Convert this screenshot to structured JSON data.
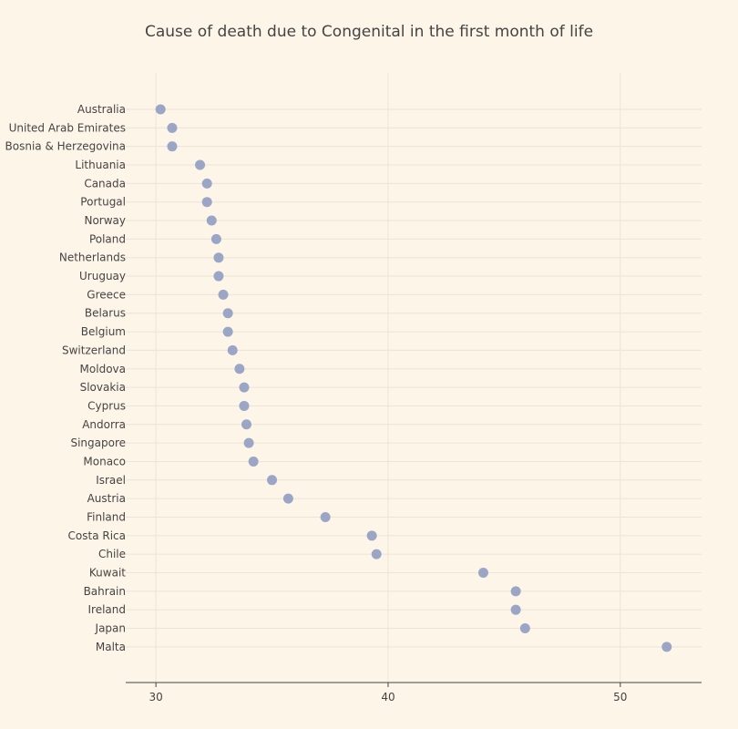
{
  "chart_data": {
    "type": "scatter",
    "title": "Cause of death due to Congenital in the first month of life",
    "xlabel": "",
    "ylabel": "",
    "xlim": [
      28.7,
      53.5
    ],
    "xticks": [
      30,
      40,
      50
    ],
    "grid": true,
    "legend": "none",
    "marker_color": "#9ba6c6",
    "categories": [
      "Australia",
      "United Arab Emirates",
      "Bosnia & Herzegovina",
      "Lithuania",
      "Canada",
      "Portugal",
      "Norway",
      "Poland",
      "Netherlands",
      "Uruguay",
      "Greece",
      "Belarus",
      "Belgium",
      "Switzerland",
      "Moldova",
      "Slovakia",
      "Cyprus",
      "Andorra",
      "Singapore",
      "Monaco",
      "Israel",
      "Austria",
      "Finland",
      "Costa Rica",
      "Chile",
      "Kuwait",
      "Bahrain",
      "Ireland",
      "Japan",
      "Malta"
    ],
    "values": [
      30.2,
      30.7,
      30.7,
      31.9,
      32.2,
      32.2,
      32.4,
      32.6,
      32.7,
      32.7,
      32.9,
      33.1,
      33.1,
      33.3,
      33.6,
      33.8,
      33.8,
      33.9,
      34.0,
      34.2,
      35.0,
      35.7,
      37.3,
      39.3,
      39.5,
      44.1,
      45.5,
      45.5,
      45.9,
      52.0
    ]
  }
}
